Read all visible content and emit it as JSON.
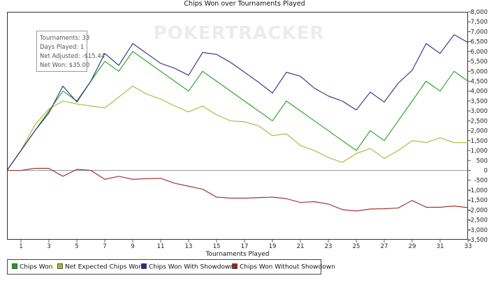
{
  "chart_data": {
    "type": "line",
    "title": "Chips Won over Tournaments Played",
    "xlabel": "Tournaments Played",
    "ylabel": "",
    "watermark": "POKERTRACKER",
    "xlim": [
      0,
      33
    ],
    "ylim": [
      -3500,
      8000
    ],
    "x_ticks": [
      1,
      3,
      5,
      7,
      9,
      11,
      13,
      15,
      17,
      19,
      21,
      23,
      25,
      27,
      29,
      31,
      33
    ],
    "y_ticks": [
      8000,
      7500,
      7000,
      6500,
      6000,
      5500,
      5000,
      4500,
      4000,
      3500,
      3000,
      2500,
      2000,
      1500,
      1000,
      500,
      0,
      -500,
      -1000,
      -1500,
      -2000,
      -2500,
      -3000,
      -3500
    ],
    "y_tick_labels": [
      "8,000",
      "7,500",
      "7,000",
      "6,500",
      "6,000",
      "5,500",
      "5,000",
      "4,500",
      "4,000",
      "3,500",
      "3,000",
      "2,500",
      "2,000",
      "1,500",
      "1,000",
      "500",
      "0",
      "-500",
      "-1,000",
      "-1,500",
      "-2,000",
      "-2,500",
      "-3,000",
      "-3,500"
    ],
    "x": [
      0,
      1,
      2,
      3,
      4,
      5,
      6,
      7,
      8,
      9,
      10,
      11,
      12,
      13,
      14,
      15,
      16,
      17,
      18,
      19,
      20,
      21,
      22,
      23,
      24,
      25,
      26,
      27,
      28,
      29,
      30,
      31,
      32,
      33
    ],
    "grid": false,
    "legend_position": "bottom",
    "series": [
      {
        "name": "Chips Won",
        "color": "#1fa11f",
        "values": [
          0,
          1000,
          2000,
          3000,
          4000,
          3500,
          4500,
          5500,
          5000,
          6000,
          5500,
          5000,
          4500,
          4000,
          5000,
          4500,
          4000,
          3500,
          3000,
          2500,
          3500,
          3000,
          2500,
          2000,
          1500,
          1000,
          2000,
          1500,
          2500,
          3500,
          4500,
          4000,
          5000,
          4500
        ]
      },
      {
        "name": "Net Expected Chips Won",
        "color": "#a8b832",
        "values": [
          0,
          1000,
          2300,
          3100,
          3500,
          3350,
          3250,
          3150,
          3700,
          4250,
          3850,
          3600,
          3250,
          2950,
          3250,
          2800,
          2500,
          2450,
          2250,
          1750,
          1850,
          1250,
          1000,
          650,
          400,
          850,
          1100,
          600,
          1000,
          1500,
          1400,
          1650,
          1400,
          1400
        ]
      },
      {
        "name": "Chips Won With Showdown",
        "color": "#2c2a82",
        "values": [
          0,
          1000,
          2000,
          2900,
          4250,
          3450,
          4500,
          5900,
          5300,
          6400,
          5900,
          5400,
          5150,
          4800,
          5950,
          5850,
          5450,
          4950,
          4450,
          3900,
          4950,
          4750,
          4150,
          3750,
          3500,
          3050,
          3950,
          3450,
          4400,
          5050,
          6400,
          5900,
          6850,
          6450
        ]
      },
      {
        "name": "Chips Won Without Showdown",
        "color": "#9c2424",
        "values": [
          0,
          0,
          100,
          100,
          -300,
          50,
          0,
          -450,
          -300,
          -450,
          -420,
          -400,
          -650,
          -800,
          -950,
          -1350,
          -1400,
          -1400,
          -1380,
          -1350,
          -1430,
          -1620,
          -1580,
          -1700,
          -1980,
          -2050,
          -1950,
          -1940,
          -1900,
          -1520,
          -1860,
          -1860,
          -1800,
          -1880
        ]
      }
    ]
  },
  "tooltip": {
    "lines": [
      "Tournaments: 33",
      "Days Played: 1",
      "Net Adjusted: -$15.44",
      "Net Won: $35.00"
    ]
  },
  "legend": {
    "items": [
      {
        "label": "Chips Won",
        "color": "#1fa11f"
      },
      {
        "label": "Net Expected Chips Won",
        "color": "#a8b832"
      },
      {
        "label": "Chips Won With Showdown",
        "color": "#2c2a82"
      },
      {
        "label": "Chips Won Without Showdown",
        "color": "#9c2424"
      }
    ]
  }
}
